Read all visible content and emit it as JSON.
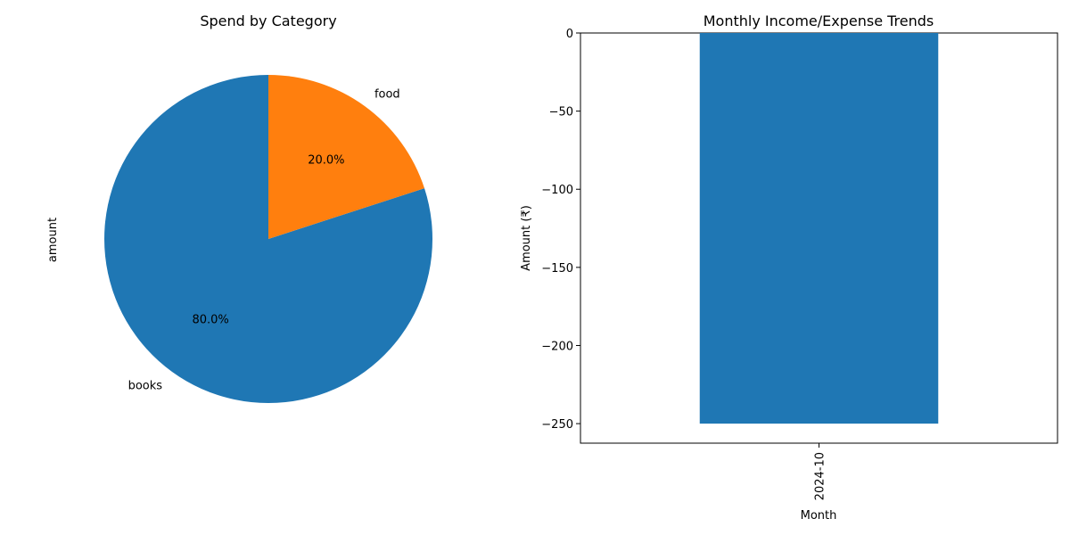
{
  "chart_data": [
    {
      "type": "pie",
      "title": "Spend by Category",
      "ylabel": "amount",
      "slices": [
        {
          "label": "books",
          "value": 80.0,
          "pct_label": "80.0%",
          "color": "#1f77b4"
        },
        {
          "label": "food",
          "value": 20.0,
          "pct_label": "20.0%",
          "color": "#ff7f0e"
        }
      ]
    },
    {
      "type": "bar",
      "title": "Monthly Income/Expense Trends",
      "xlabel": "Month",
      "ylabel": "Amount (₹)",
      "categories": [
        "2024-10"
      ],
      "values": [
        -250
      ],
      "ylim": [
        -262.5,
        0
      ],
      "yticks": [
        0,
        -50,
        -100,
        -150,
        -200,
        -250
      ],
      "ytick_labels": [
        "0",
        "−50",
        "−100",
        "−150",
        "−200",
        "−250"
      ],
      "color": "#1f77b4"
    }
  ]
}
